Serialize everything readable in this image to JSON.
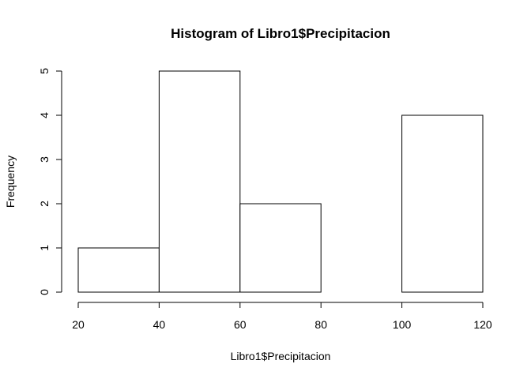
{
  "chart_data": {
    "type": "bar",
    "title": "Histogram of Libro1$Precipitacion",
    "xlabel": "Libro1$Precipitacion",
    "ylabel": "Frequency",
    "bins": [
      {
        "start": 20,
        "end": 40,
        "count": 1
      },
      {
        "start": 40,
        "end": 60,
        "count": 5
      },
      {
        "start": 60,
        "end": 80,
        "count": 2
      },
      {
        "start": 80,
        "end": 100,
        "count": 0
      },
      {
        "start": 100,
        "end": 120,
        "count": 4
      }
    ],
    "x_ticks": [
      20,
      40,
      60,
      80,
      100,
      120
    ],
    "y_ticks": [
      0,
      1,
      2,
      3,
      4,
      5
    ],
    "xlim": [
      20,
      120
    ],
    "ylim": [
      0,
      5
    ],
    "grid": false
  }
}
